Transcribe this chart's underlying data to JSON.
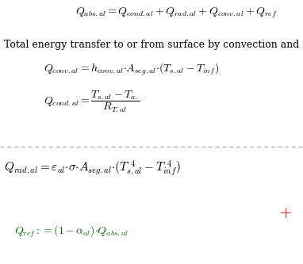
{
  "bg_color": "#ffffff",
  "text_color": "#000000",
  "red_color": "#cc0000",
  "green_color": "#006600",
  "dashed_line_color": "#aaaaaa",
  "figsize": [
    3.82,
    3.33
  ],
  "dpi": 100,
  "font_family": "serif",
  "fs_eq": 10,
  "fs_text": 9
}
